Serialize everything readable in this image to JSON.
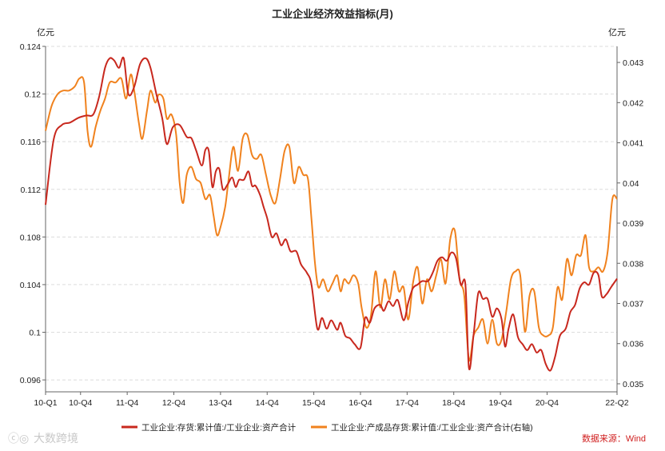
{
  "chart_data": {
    "type": "line",
    "title": "工业企业经济效益指标(月)",
    "left_unit": "亿元",
    "right_unit": "亿元",
    "x_tick_labels": [
      "10-Q1",
      "10-Q4",
      "11-Q4",
      "12-Q4",
      "13-Q4",
      "14-Q4",
      "15-Q4",
      "16-Q4",
      "17-Q4",
      "18-Q4",
      "19-Q4",
      "20-Q4",
      "22-Q2"
    ],
    "x_ticks": [
      0,
      3,
      7,
      11,
      15,
      19,
      23,
      27,
      31,
      35,
      39,
      43,
      49
    ],
    "x_range": [
      0,
      49
    ],
    "left_axis": {
      "range": [
        0.095,
        0.124
      ],
      "ticks": [
        0.096,
        0.1,
        0.104,
        0.108,
        0.112,
        0.116,
        0.12,
        0.124
      ],
      "tick_labels": [
        "0.096",
        "0.1",
        "0.104",
        "0.108",
        "0.112",
        "0.116",
        "0.12",
        "0.124"
      ]
    },
    "right_axis": {
      "range": [
        0.0348,
        0.0434
      ],
      "ticks": [
        0.035,
        0.036,
        0.037,
        0.038,
        0.039,
        0.04,
        0.041,
        0.042,
        0.043
      ],
      "tick_labels": [
        "0.035",
        "0.036",
        "0.037",
        "0.038",
        "0.039",
        "0.04",
        "0.041",
        "0.042",
        "0.043"
      ]
    },
    "grid": "horizontal dashed",
    "legend_position": "bottom",
    "series": [
      {
        "name": "工业企业:存货:累计值:/工业企业:资产合计",
        "axis": "left",
        "color": "#c8281e",
        "points": [
          [
            0,
            0.1107
          ],
          [
            0.7,
            0.1162
          ],
          [
            1.4,
            0.1174
          ],
          [
            2.1,
            0.1176
          ],
          [
            2.8,
            0.118
          ],
          [
            3.5,
            0.1182
          ],
          [
            4.1,
            0.1183
          ],
          [
            4.6,
            0.1198
          ],
          [
            5.1,
            0.1222
          ],
          [
            5.5,
            0.123
          ],
          [
            5.9,
            0.1228
          ],
          [
            6.3,
            0.1222
          ],
          [
            6.7,
            0.123
          ],
          [
            7.1,
            0.12
          ],
          [
            7.6,
            0.1206
          ],
          [
            8.1,
            0.1225
          ],
          [
            8.6,
            0.123
          ],
          [
            9.0,
            0.1222
          ],
          [
            9.5,
            0.12
          ],
          [
            10.0,
            0.118
          ],
          [
            10.4,
            0.1158
          ],
          [
            10.9,
            0.1172
          ],
          [
            11.5,
            0.1174
          ],
          [
            12.1,
            0.1164
          ],
          [
            12.5,
            0.1163
          ],
          [
            12.9,
            0.1153
          ],
          [
            13.4,
            0.114
          ],
          [
            13.7,
            0.1153
          ],
          [
            14.0,
            0.1152
          ],
          [
            14.3,
            0.1122
          ],
          [
            14.6,
            0.1135
          ],
          [
            14.9,
            0.1137
          ],
          [
            15.2,
            0.112
          ],
          [
            15.6,
            0.1124
          ],
          [
            16.0,
            0.113
          ],
          [
            16.3,
            0.1122
          ],
          [
            16.6,
            0.1128
          ],
          [
            17.0,
            0.1128
          ],
          [
            17.4,
            0.1135
          ],
          [
            17.7,
            0.1123
          ],
          [
            18.0,
            0.1123
          ],
          [
            18.4,
            0.1115
          ],
          [
            18.7,
            0.1105
          ],
          [
            19.0,
            0.1096
          ],
          [
            19.4,
            0.108
          ],
          [
            19.8,
            0.1083
          ],
          [
            20.2,
            0.1073
          ],
          [
            20.6,
            0.1078
          ],
          [
            21.0,
            0.1068
          ],
          [
            21.5,
            0.1068
          ],
          [
            21.9,
            0.1057
          ],
          [
            22.4,
            0.105
          ],
          [
            22.8,
            0.104
          ],
          [
            23.3,
            0.1003
          ],
          [
            23.7,
            0.1012
          ],
          [
            24.1,
            0.1003
          ],
          [
            24.5,
            0.101
          ],
          [
            25.0,
            0.1002
          ],
          [
            25.3,
            0.1008
          ],
          [
            25.7,
            0.0997
          ],
          [
            26.1,
            0.0995
          ],
          [
            26.5,
            0.099
          ],
          [
            27.0,
            0.0987
          ],
          [
            27.4,
            0.1012
          ],
          [
            27.8,
            0.1008
          ],
          [
            28.2,
            0.102
          ],
          [
            28.7,
            0.1023
          ],
          [
            29.0,
            0.1018
          ],
          [
            29.4,
            0.1026
          ],
          [
            29.8,
            0.1022
          ],
          [
            30.2,
            0.1027
          ],
          [
            30.7,
            0.101
          ],
          [
            31.1,
            0.1025
          ],
          [
            31.5,
            0.1037
          ],
          [
            31.9,
            0.104
          ],
          [
            32.3,
            0.1043
          ],
          [
            32.8,
            0.1043
          ],
          [
            33.2,
            0.105
          ],
          [
            33.6,
            0.106
          ],
          [
            34.0,
            0.1063
          ],
          [
            34.4,
            0.106
          ],
          [
            34.8,
            0.1067
          ],
          [
            35.2,
            0.1062
          ],
          [
            35.6,
            0.104
          ],
          [
            36.0,
            0.104
          ],
          [
            36.3,
            0.097
          ],
          [
            36.7,
            0.0998
          ],
          [
            37.1,
            0.1033
          ],
          [
            37.5,
            0.1028
          ],
          [
            37.9,
            0.1028
          ],
          [
            38.3,
            0.1013
          ],
          [
            38.7,
            0.102
          ],
          [
            39.1,
            0.1011
          ],
          [
            39.4,
            0.0988
          ],
          [
            39.7,
            0.1003
          ],
          [
            40.1,
            0.1015
          ],
          [
            40.5,
            0.0996
          ],
          [
            40.9,
            0.099
          ],
          [
            41.3,
            0.0985
          ],
          [
            41.7,
            0.099
          ],
          [
            42.1,
            0.0983
          ],
          [
            42.5,
            0.0985
          ],
          [
            42.9,
            0.0973
          ],
          [
            43.3,
            0.0968
          ],
          [
            43.7,
            0.098
          ],
          [
            44.1,
            0.0997
          ],
          [
            44.6,
            0.1003
          ],
          [
            45.0,
            0.1017
          ],
          [
            45.4,
            0.1023
          ],
          [
            45.8,
            0.1037
          ],
          [
            46.2,
            0.1042
          ],
          [
            46.6,
            0.104
          ],
          [
            47.0,
            0.105
          ],
          [
            47.4,
            0.1048
          ],
          [
            47.7,
            0.103
          ],
          [
            48.1,
            0.1032
          ],
          [
            48.5,
            0.1038
          ],
          [
            49.0,
            0.1045
          ]
        ]
      },
      {
        "name": "工业企业:产成品存货:累计值:/工业企业:资产合计(右轴)",
        "axis": "right",
        "color": "#f0821e",
        "points": [
          [
            0,
            0.0413
          ],
          [
            0.5,
            0.0419
          ],
          [
            1.0,
            0.0422
          ],
          [
            1.5,
            0.0423
          ],
          [
            2.0,
            0.0423
          ],
          [
            2.5,
            0.0424
          ],
          [
            2.9,
            0.0426
          ],
          [
            3.3,
            0.0425
          ],
          [
            3.6,
            0.0413
          ],
          [
            3.9,
            0.0409
          ],
          [
            4.3,
            0.0414
          ],
          [
            4.7,
            0.0418
          ],
          [
            5.1,
            0.0421
          ],
          [
            5.5,
            0.0425
          ],
          [
            6.0,
            0.0425
          ],
          [
            6.5,
            0.0426
          ],
          [
            6.9,
            0.0421
          ],
          [
            7.3,
            0.0427
          ],
          [
            7.6,
            0.0423
          ],
          [
            8.0,
            0.0415
          ],
          [
            8.3,
            0.0411
          ],
          [
            8.7,
            0.0418
          ],
          [
            9.0,
            0.0423
          ],
          [
            9.4,
            0.042
          ],
          [
            9.7,
            0.0422
          ],
          [
            10.1,
            0.0421
          ],
          [
            10.4,
            0.0416
          ],
          [
            10.8,
            0.0417
          ],
          [
            11.2,
            0.0412
          ],
          [
            11.5,
            0.04
          ],
          [
            11.8,
            0.0395
          ],
          [
            12.1,
            0.0402
          ],
          [
            12.5,
            0.0404
          ],
          [
            12.9,
            0.0401
          ],
          [
            13.3,
            0.04
          ],
          [
            13.7,
            0.0396
          ],
          [
            14.1,
            0.0397
          ],
          [
            14.4,
            0.0392
          ],
          [
            14.7,
            0.0387
          ],
          [
            15.0,
            0.0389
          ],
          [
            15.4,
            0.0394
          ],
          [
            15.7,
            0.0401
          ],
          [
            16.1,
            0.0409
          ],
          [
            16.5,
            0.0403
          ],
          [
            16.9,
            0.0411
          ],
          [
            17.3,
            0.0412
          ],
          [
            17.7,
            0.0407
          ],
          [
            18.1,
            0.0406
          ],
          [
            18.5,
            0.0407
          ],
          [
            18.9,
            0.0402
          ],
          [
            19.3,
            0.0397
          ],
          [
            19.7,
            0.0395
          ],
          [
            20.1,
            0.0401
          ],
          [
            20.5,
            0.0408
          ],
          [
            20.9,
            0.0409
          ],
          [
            21.3,
            0.04
          ],
          [
            21.7,
            0.0404
          ],
          [
            22.1,
            0.0402
          ],
          [
            22.5,
            0.0401
          ],
          [
            22.8,
            0.0391
          ],
          [
            23.1,
            0.038
          ],
          [
            23.4,
            0.0374
          ],
          [
            23.8,
            0.0376
          ],
          [
            24.2,
            0.0373
          ],
          [
            24.6,
            0.0375
          ],
          [
            25.0,
            0.0377
          ],
          [
            25.3,
            0.0373
          ],
          [
            25.6,
            0.0376
          ],
          [
            26.0,
            0.0375
          ],
          [
            26.4,
            0.0377
          ],
          [
            26.8,
            0.0375
          ],
          [
            27.1,
            0.0369
          ],
          [
            27.5,
            0.0364
          ],
          [
            27.9,
            0.0367
          ],
          [
            28.3,
            0.0378
          ],
          [
            28.7,
            0.0369
          ],
          [
            29.1,
            0.0376
          ],
          [
            29.5,
            0.0371
          ],
          [
            29.9,
            0.0378
          ],
          [
            30.3,
            0.0373
          ],
          [
            30.7,
            0.0374
          ],
          [
            31.1,
            0.0366
          ],
          [
            31.5,
            0.0375
          ],
          [
            31.9,
            0.0379
          ],
          [
            32.3,
            0.037
          ],
          [
            32.7,
            0.0376
          ],
          [
            33.1,
            0.0373
          ],
          [
            33.5,
            0.0377
          ],
          [
            33.9,
            0.0381
          ],
          [
            34.3,
            0.0375
          ],
          [
            34.7,
            0.0386
          ],
          [
            35.1,
            0.0388
          ],
          [
            35.5,
            0.0376
          ],
          [
            35.9,
            0.0372
          ],
          [
            36.3,
            0.0356
          ],
          [
            36.7,
            0.0362
          ],
          [
            37.1,
            0.0364
          ],
          [
            37.5,
            0.0366
          ],
          [
            37.9,
            0.036
          ],
          [
            38.3,
            0.0366
          ],
          [
            38.7,
            0.036
          ],
          [
            39.1,
            0.0361
          ],
          [
            39.5,
            0.0368
          ],
          [
            39.9,
            0.0376
          ],
          [
            40.3,
            0.0378
          ],
          [
            40.7,
            0.0377
          ],
          [
            41.1,
            0.0363
          ],
          [
            41.5,
            0.0372
          ],
          [
            41.9,
            0.0373
          ],
          [
            42.3,
            0.0364
          ],
          [
            42.7,
            0.0362
          ],
          [
            43.1,
            0.0362
          ],
          [
            43.5,
            0.0364
          ],
          [
            43.9,
            0.0374
          ],
          [
            44.3,
            0.0371
          ],
          [
            44.7,
            0.0381
          ],
          [
            45.1,
            0.0377
          ],
          [
            45.5,
            0.0382
          ],
          [
            45.9,
            0.0382
          ],
          [
            46.3,
            0.0387
          ],
          [
            46.6,
            0.0379
          ],
          [
            47.0,
            0.0378
          ],
          [
            47.4,
            0.0379
          ],
          [
            47.8,
            0.0378
          ],
          [
            48.2,
            0.0383
          ],
          [
            48.6,
            0.0396
          ],
          [
            49.0,
            0.0396
          ]
        ]
      }
    ]
  },
  "source_text": "数据来源：Wind",
  "watermark_text": "大数跨境"
}
